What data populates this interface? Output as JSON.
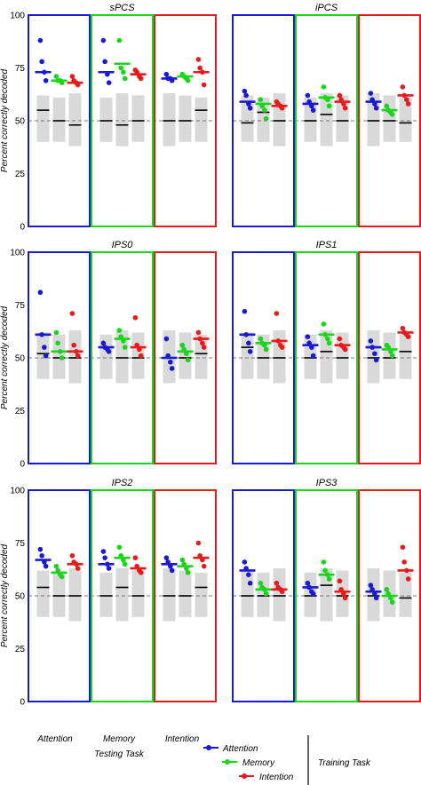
{
  "figure": {
    "ylabel": "Percent correctly decoded",
    "xlabel": "Testing Task",
    "legend_title": "Training Task",
    "legend_position": "bottom-right"
  },
  "colors": {
    "Attention": "#1a1ad6",
    "Memory": "#19d619",
    "Intention": "#e81a1a",
    "null_band": "#d9d9d9",
    "chance_line": "#777777"
  },
  "chart_data": [
    {
      "type": "scatter",
      "title": "sPCS",
      "ylim": [
        0,
        100
      ],
      "yticks": [
        0,
        25,
        50,
        75,
        100
      ],
      "chance": 50,
      "categories": [
        "Attention",
        "Memory",
        "Intention"
      ],
      "series": [
        {
          "name": "Attention",
          "means": [
            73,
            73,
            70
          ],
          "points": [
            [
              88,
              78,
              73,
              69
            ],
            [
              88,
              78,
              72,
              68
            ],
            [
              72,
              70,
              70,
              69
            ]
          ]
        },
        {
          "name": "Memory",
          "means": [
            69,
            77,
            71
          ],
          "points": [
            [
              71,
              69,
              69,
              68
            ],
            [
              88,
              75,
              73,
              70
            ],
            [
              72,
              71,
              70,
              69
            ]
          ]
        },
        {
          "name": "Intention",
          "means": [
            68,
            72,
            73
          ],
          "points": [
            [
              71,
              69,
              68,
              67
            ],
            [
              74,
              73,
              71,
              70
            ],
            [
              79,
              75,
              73,
              67
            ]
          ]
        }
      ],
      "null_means": [
        [
          55,
          50,
          48
        ],
        [
          50,
          48,
          50
        ],
        [
          50,
          50,
          55
        ]
      ]
    },
    {
      "type": "scatter",
      "title": "iPCS",
      "ylim": [
        0,
        100
      ],
      "yticks": [
        0,
        25,
        50,
        75,
        100
      ],
      "chance": 50,
      "categories": [
        "Attention",
        "Memory",
        "Intention"
      ],
      "series": [
        {
          "name": "Attention",
          "means": [
            59,
            58,
            59
          ],
          "points": [
            [
              64,
              62,
              58,
              56
            ],
            [
              62,
              59,
              57,
              55
            ],
            [
              63,
              60,
              58,
              56
            ]
          ]
        },
        {
          "name": "Memory",
          "means": [
            58,
            61,
            55
          ],
          "points": [
            [
              60,
              57,
              55,
              51
            ],
            [
              66,
              61,
              60,
              57
            ],
            [
              57,
              55,
              54,
              53
            ]
          ]
        },
        {
          "name": "Intention",
          "means": [
            57,
            59,
            62
          ],
          "points": [
            [
              59,
              58,
              57,
              56
            ],
            [
              62,
              60,
              58,
              56
            ],
            [
              66,
              62,
              60,
              58
            ]
          ]
        }
      ],
      "null_means": [
        [
          49,
          54,
          50
        ],
        [
          50,
          53,
          50
        ],
        [
          50,
          50,
          49
        ]
      ]
    },
    {
      "type": "scatter",
      "title": "IPS0",
      "ylim": [
        0,
        100
      ],
      "yticks": [
        0,
        25,
        50,
        75,
        100
      ],
      "chance": 50,
      "categories": [
        "Attention",
        "Memory",
        "Intention"
      ],
      "series": [
        {
          "name": "Attention",
          "means": [
            61,
            55,
            50
          ],
          "points": [
            [
              81,
              61,
              55,
              51
            ],
            [
              57,
              55,
              54,
              53
            ],
            [
              59,
              51,
              48,
              45
            ]
          ]
        },
        {
          "name": "Memory",
          "means": [
            53,
            59,
            53
          ],
          "points": [
            [
              62,
              57,
              53,
              50
            ],
            [
              63,
              60,
              58,
              55
            ],
            [
              56,
              54,
              52,
              49
            ]
          ]
        },
        {
          "name": "Intention",
          "means": [
            53,
            55,
            59
          ],
          "points": [
            [
              71,
              56,
              53,
              51
            ],
            [
              69,
              56,
              54,
              51
            ],
            [
              62,
              59,
              57,
              55
            ]
          ]
        }
      ],
      "null_means": [
        [
          52,
          50,
          50
        ],
        [
          55,
          50,
          50
        ],
        [
          50,
          50,
          52
        ]
      ]
    },
    {
      "type": "scatter",
      "title": "IPS1",
      "ylim": [
        0,
        100
      ],
      "yticks": [
        0,
        25,
        50,
        75,
        100
      ],
      "chance": 50,
      "categories": [
        "Attention",
        "Memory",
        "Intention"
      ],
      "series": [
        {
          "name": "Attention",
          "means": [
            61,
            56,
            55
          ],
          "points": [
            [
              72,
              61,
              57,
              53
            ],
            [
              60,
              57,
              55,
              51
            ],
            [
              58,
              55,
              52,
              49
            ]
          ]
        },
        {
          "name": "Memory",
          "means": [
            57,
            61,
            54
          ],
          "points": [
            [
              59,
              57,
              56,
              54
            ],
            [
              66,
              61,
              59,
              57
            ],
            [
              56,
              55,
              53,
              51
            ]
          ]
        },
        {
          "name": "Intention",
          "means": [
            58,
            56,
            62
          ],
          "points": [
            [
              71,
              58,
              56,
              55
            ],
            [
              59,
              56,
              55,
              54
            ],
            [
              64,
              62,
              61,
              60
            ]
          ]
        }
      ],
      "null_means": [
        [
          55,
          50,
          50
        ],
        [
          50,
          53,
          50
        ],
        [
          50,
          50,
          53
        ]
      ]
    },
    {
      "type": "scatter",
      "title": "IPS2",
      "ylim": [
        0,
        100
      ],
      "yticks": [
        0,
        25,
        50,
        75,
        100
      ],
      "chance": 50,
      "categories": [
        "Attention",
        "Memory",
        "Intention"
      ],
      "series": [
        {
          "name": "Attention",
          "means": [
            67,
            65,
            65
          ],
          "points": [
            [
              72,
              69,
              66,
              64
            ],
            [
              71,
              68,
              65,
              63
            ],
            [
              68,
              66,
              64,
              62
            ]
          ]
        },
        {
          "name": "Memory",
          "means": [
            61,
            68,
            64
          ],
          "points": [
            [
              64,
              62,
              60,
              59
            ],
            [
              73,
              69,
              67,
              65
            ],
            [
              67,
              65,
              63,
              61
            ]
          ]
        },
        {
          "name": "Intention",
          "means": [
            65,
            63,
            68
          ],
          "points": [
            [
              69,
              66,
              65,
              63
            ],
            [
              68,
              64,
              62,
              61
            ],
            [
              75,
              69,
              67,
              64
            ]
          ]
        }
      ],
      "null_means": [
        [
          54,
          50,
          50
        ],
        [
          50,
          54,
          50
        ],
        [
          50,
          50,
          54
        ]
      ]
    },
    {
      "type": "scatter",
      "title": "IPS3",
      "ylim": [
        0,
        100
      ],
      "yticks": [
        0,
        25,
        50,
        75,
        100
      ],
      "chance": 50,
      "categories": [
        "Attention",
        "Memory",
        "Intention"
      ],
      "series": [
        {
          "name": "Attention",
          "means": [
            62,
            54,
            52
          ],
          "points": [
            [
              66,
              63,
              60,
              56
            ],
            [
              56,
              54,
              52,
              51
            ],
            [
              55,
              53,
              51,
              49
            ]
          ]
        },
        {
          "name": "Memory",
          "means": [
            53,
            60,
            50
          ],
          "points": [
            [
              56,
              54,
              53,
              51
            ],
            [
              66,
              62,
              60,
              58
            ],
            [
              53,
              51,
              49,
              47
            ]
          ]
        },
        {
          "name": "Intention",
          "means": [
            53,
            52,
            62
          ],
          "points": [
            [
              56,
              54,
              53,
              52
            ],
            [
              57,
              53,
              51,
              49
            ],
            [
              73,
              66,
              62,
              58
            ]
          ]
        }
      ],
      "null_means": [
        [
          50,
          50,
          50
        ],
        [
          50,
          55,
          50
        ],
        [
          50,
          50,
          49
        ]
      ]
    }
  ]
}
